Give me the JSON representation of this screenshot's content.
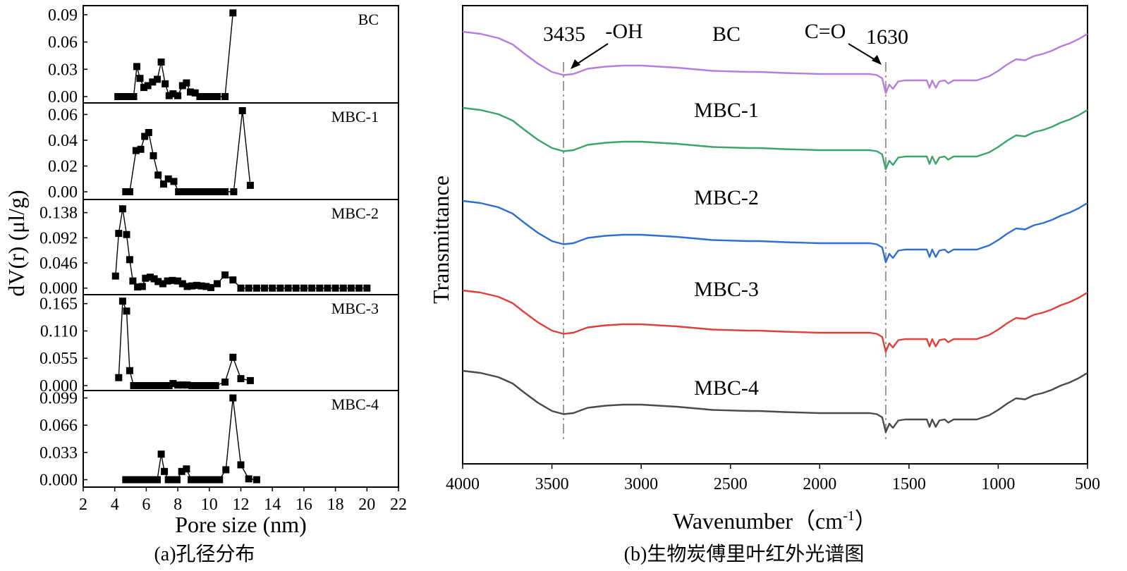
{
  "captions": {
    "a": "(a)孔径分布",
    "b": "(b)生物炭傅里叶红外光谱图"
  },
  "chart_data": [
    {
      "type": "line",
      "title": "(a)孔径分布",
      "xlabel": "Pore size (nm)",
      "ylabel": "dV(r) (μl/g)",
      "xlim": [
        2,
        22
      ],
      "xticks": [
        "2",
        "4",
        "6",
        "8",
        "10",
        "12",
        "14",
        "16",
        "18",
        "20",
        "22"
      ],
      "marker": "square",
      "panels": [
        {
          "name": "BC",
          "yticks": [
            "0.00",
            "0.03",
            "0.06",
            "0.09"
          ],
          "ylim": [
            -0.007,
            0.1
          ],
          "x": [
            4.2,
            4.45,
            4.7,
            4.95,
            5.2,
            5.4,
            5.6,
            5.85,
            6.1,
            6.4,
            6.7,
            6.95,
            7.2,
            7.45,
            7.7,
            8.0,
            8.3,
            8.55,
            8.8,
            9.1,
            9.4,
            9.65,
            9.9,
            10.2,
            10.5,
            11.0,
            11.5
          ],
          "y": [
            0,
            0,
            0,
            0,
            0,
            0.033,
            0.02,
            0.01,
            0.012,
            0.016,
            0.019,
            0.038,
            0.014,
            0.001,
            0.003,
            0.001,
            0.012,
            0.015,
            0.005,
            0.004,
            0,
            0,
            0,
            0,
            0,
            0,
            0.092
          ]
        },
        {
          "name": "MBC-1",
          "yticks": [
            "0.00",
            "0.02",
            "0.04",
            "0.06"
          ],
          "ylim": [
            -0.006,
            0.069
          ],
          "x": [
            4.7,
            4.95,
            5.35,
            5.65,
            5.9,
            6.15,
            6.45,
            6.75,
            7.1,
            7.4,
            7.75,
            8.05,
            8.3,
            8.55,
            8.8,
            9.05,
            9.3,
            9.55,
            9.8,
            10.05,
            10.3,
            10.55,
            11.0,
            11.55,
            12.1,
            12.6
          ],
          "y": [
            0,
            0,
            0.032,
            0.033,
            0.043,
            0.046,
            0.028,
            0.013,
            0.006,
            0.01,
            0.008,
            0,
            0,
            0,
            0,
            0,
            0,
            0,
            0,
            0,
            0,
            0,
            0,
            0,
            0.063,
            0.005
          ]
        },
        {
          "name": "MBC-2",
          "yticks": [
            "0.000",
            "0.046",
            "0.092",
            "0.138"
          ],
          "ylim": [
            -0.012,
            0.162
          ],
          "x": [
            4.05,
            4.25,
            4.5,
            4.75,
            4.95,
            5.15,
            5.45,
            5.75,
            5.95,
            6.25,
            6.5,
            6.75,
            7.05,
            7.35,
            7.65,
            8.0,
            8.3,
            8.6,
            8.9,
            9.2,
            9.5,
            9.8,
            10.1,
            10.5,
            11.0,
            11.5,
            12.0,
            12.5,
            13.0,
            13.5,
            14.0,
            14.5,
            15.0,
            15.5,
            16.0,
            16.5,
            17.0,
            17.5,
            18.0,
            18.5,
            19.0,
            19.5,
            20.0
          ],
          "y": [
            0.022,
            0.1,
            0.145,
            0.098,
            0.052,
            0.013,
            0.002,
            0.003,
            0.018,
            0.02,
            0.017,
            0.012,
            0.008,
            0.013,
            0.014,
            0.013,
            0.008,
            0.003,
            0.004,
            0.005,
            0.004,
            0.003,
            0.001,
            0.008,
            0.024,
            0.015,
            0,
            0,
            0,
            0,
            0,
            0,
            0,
            0,
            0,
            0,
            0,
            0,
            0,
            0,
            0,
            0,
            0
          ]
        },
        {
          "name": "MBC-3",
          "yticks": [
            "0.000",
            "0.055",
            "0.110",
            "0.165"
          ],
          "ylim": [
            -0.01,
            0.183
          ],
          "x": [
            4.25,
            4.5,
            4.75,
            4.95,
            5.2,
            5.45,
            5.7,
            5.95,
            6.2,
            6.45,
            6.7,
            6.95,
            7.2,
            7.45,
            7.7,
            8.0,
            8.3,
            8.6,
            8.9,
            9.2,
            9.5,
            9.8,
            10.1,
            10.4,
            11.0,
            11.5,
            12.0,
            12.6
          ],
          "y": [
            0.016,
            0.17,
            0.15,
            0.03,
            0,
            0,
            0,
            0,
            0,
            0,
            0,
            0,
            0,
            0,
            0.004,
            0.001,
            0.001,
            0.001,
            0,
            0,
            0,
            0,
            0,
            0,
            0.007,
            0.057,
            0.014,
            0.01
          ]
        },
        {
          "name": "MBC-4",
          "yticks": [
            "0.000",
            "0.033",
            "0.066",
            "0.099"
          ],
          "ylim": [
            -0.009,
            0.108
          ],
          "x": [
            4.7,
            4.95,
            5.2,
            5.45,
            5.7,
            5.95,
            6.2,
            6.45,
            6.7,
            6.95,
            7.15,
            7.4,
            7.65,
            7.95,
            8.25,
            8.55,
            8.85,
            9.15,
            9.45,
            9.75,
            10.05,
            10.35,
            10.65,
            11.05,
            11.5,
            12.0,
            12.5,
            13.0
          ],
          "y": [
            0,
            0,
            0,
            0,
            0,
            0,
            0,
            0,
            0,
            0.031,
            0.01,
            0,
            0,
            0,
            0.01,
            0.013,
            0,
            0,
            0,
            0,
            0,
            0,
            0,
            0.012,
            0.099,
            0.018,
            0.001,
            0
          ]
        }
      ]
    },
    {
      "type": "line",
      "title": "(b)生物炭傅里叶红外光谱图",
      "xlabel": "Wavenumber（cm",
      "xlabel_sup": "-1",
      "xlabel_close": "）",
      "ylabel": "Transmittance",
      "xlim": [
        4000,
        500
      ],
      "xticks": [
        "4000",
        "3500",
        "3000",
        "2500",
        "2000",
        "1500",
        "1000",
        "500"
      ],
      "annotations": {
        "oh_wavenumber": "3435",
        "oh_group": "-OH",
        "co_group": "C=O",
        "co_wavenumber": "1630",
        "oh_line_at": 3435,
        "co_line_at": 1630
      },
      "x": [
        4000,
        3900,
        3800,
        3720,
        3660,
        3580,
        3500,
        3435,
        3380,
        3300,
        3200,
        3100,
        3000,
        2800,
        2600,
        2400,
        2360,
        2340,
        2200,
        2000,
        1800,
        1720,
        1680,
        1650,
        1630,
        1610,
        1590,
        1560,
        1520,
        1480,
        1440,
        1400,
        1385,
        1370,
        1350,
        1330,
        1300,
        1280,
        1250,
        1220,
        1180,
        1120,
        1050,
        1000,
        950,
        900,
        850,
        800,
        750,
        700,
        650,
        600,
        550,
        500
      ],
      "series": [
        {
          "name": "BC",
          "color": "#b57de0",
          "y": [
            100,
            98,
            94,
            88,
            80,
            70,
            62,
            59,
            60,
            65,
            67,
            68,
            68,
            66,
            63,
            62,
            62,
            62,
            61,
            60,
            60,
            60,
            59,
            56,
            42,
            50,
            46,
            53,
            54,
            54,
            54,
            54,
            47,
            54,
            47,
            53,
            54,
            51,
            54,
            54,
            54,
            54,
            58,
            63,
            69,
            74,
            73,
            77,
            79,
            82,
            86,
            89,
            93,
            98
          ]
        },
        {
          "name": "MBC-1",
          "color": "#3aa46a",
          "y": [
            100,
            98,
            94,
            88,
            80,
            70,
            62,
            59,
            60,
            65,
            67,
            68,
            68,
            66,
            63,
            62,
            62,
            62,
            61,
            60,
            60,
            60,
            59,
            56,
            42,
            50,
            46,
            53,
            54,
            54,
            54,
            54,
            47,
            54,
            47,
            53,
            54,
            51,
            54,
            54,
            54,
            54,
            58,
            63,
            69,
            74,
            73,
            77,
            79,
            82,
            86,
            89,
            93,
            98
          ]
        },
        {
          "name": "MBC-2",
          "color": "#2f6fd1",
          "y": [
            100,
            98,
            94,
            88,
            80,
            70,
            62,
            59,
            60,
            65,
            67,
            68,
            68,
            66,
            63,
            62,
            62,
            62,
            61,
            60,
            60,
            60,
            59,
            56,
            42,
            50,
            46,
            53,
            54,
            54,
            54,
            54,
            47,
            54,
            47,
            53,
            54,
            51,
            54,
            54,
            54,
            54,
            58,
            63,
            69,
            74,
            73,
            77,
            79,
            82,
            86,
            89,
            93,
            98
          ]
        },
        {
          "name": "MBC-3",
          "color": "#e0403c",
          "y": [
            100,
            98,
            94,
            88,
            80,
            70,
            62,
            59,
            60,
            65,
            67,
            68,
            68,
            66,
            63,
            62,
            62,
            62,
            61,
            60,
            60,
            60,
            59,
            56,
            42,
            50,
            46,
            53,
            54,
            54,
            54,
            54,
            47,
            54,
            47,
            53,
            54,
            51,
            54,
            54,
            54,
            54,
            58,
            63,
            69,
            74,
            73,
            77,
            79,
            82,
            86,
            89,
            93,
            98
          ]
        },
        {
          "name": "MBC-4",
          "color": "#4a4a4a",
          "y": [
            100,
            98,
            94,
            88,
            80,
            70,
            62,
            59,
            60,
            65,
            67,
            68,
            68,
            66,
            63,
            62,
            62,
            62,
            61,
            60,
            60,
            60,
            59,
            56,
            42,
            50,
            46,
            53,
            54,
            54,
            54,
            54,
            47,
            54,
            47,
            53,
            54,
            51,
            54,
            54,
            54,
            54,
            58,
            63,
            69,
            74,
            73,
            77,
            79,
            82,
            86,
            89,
            93,
            98
          ]
        }
      ]
    }
  ]
}
